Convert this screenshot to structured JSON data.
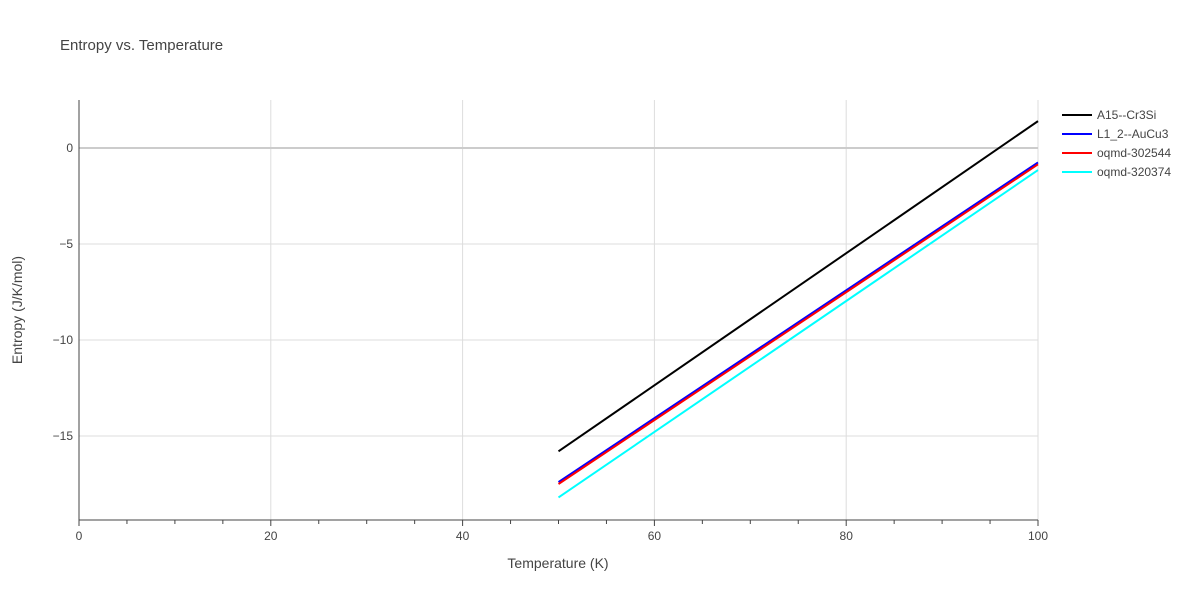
{
  "chart_data": {
    "type": "line",
    "title": "Entropy vs. Temperature",
    "xlabel": "Temperature (K)",
    "ylabel": "Entropy (J/K/mol)",
    "xlim": [
      0,
      100
    ],
    "ylim": [
      -19.4,
      2.5
    ],
    "xticks": [
      0,
      20,
      40,
      60,
      80,
      100
    ],
    "yticks": [
      0,
      -5,
      -10,
      -15
    ],
    "ytick_labels": [
      "0",
      "−5",
      "−10",
      "−15"
    ],
    "grid": true,
    "legend_position": "top-right",
    "series": [
      {
        "name": "A15--Cr3Si",
        "color": "#000000",
        "x": [
          50,
          100
        ],
        "y": [
          -15.8,
          1.4
        ]
      },
      {
        "name": "L1_2--AuCu3",
        "color": "#0000ff",
        "x": [
          50,
          100
        ],
        "y": [
          -17.4,
          -0.75
        ]
      },
      {
        "name": "oqmd-302544",
        "color": "#ff0000",
        "x": [
          50,
          100
        ],
        "y": [
          -17.5,
          -0.85
        ]
      },
      {
        "name": "oqmd-320374",
        "color": "#00ffff",
        "x": [
          50,
          100
        ],
        "y": [
          -18.2,
          -1.15
        ]
      }
    ]
  }
}
